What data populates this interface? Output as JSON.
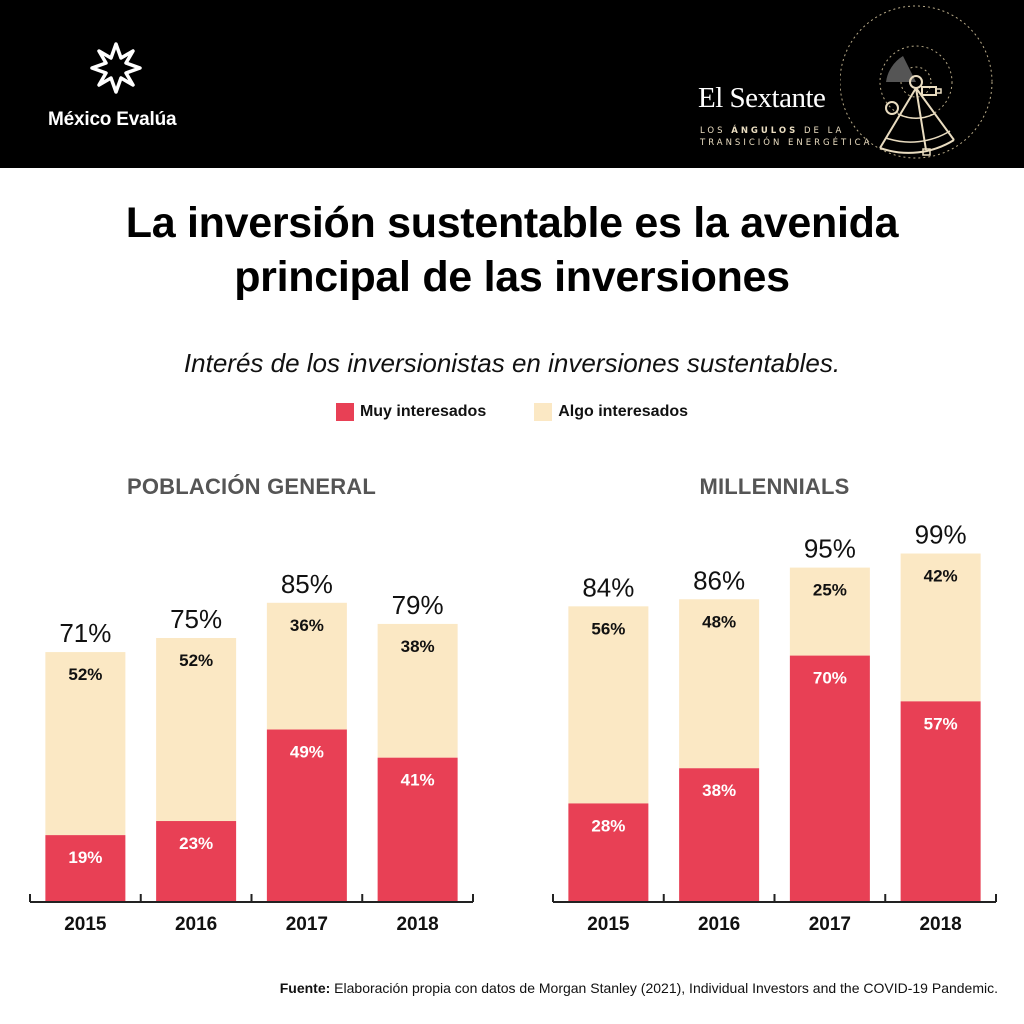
{
  "header": {
    "org_name": "México Evalúa",
    "brand_title": "El Sextante",
    "brand_subtitle_line1_pre": "LOS ",
    "brand_subtitle_line1_bold": "ÁNGULOS",
    "brand_subtitle_line1_post": " DE LA",
    "brand_subtitle_line2": "TRANSICIÓN ENERGÉTICA"
  },
  "title_line1": "La inversión sustentable es la avenida",
  "title_line2": "principal de las inversiones",
  "subtitle": "Interés de los inversionistas en inversiones sustentables.",
  "colors": {
    "muy": "#e84055",
    "algo": "#fbe8c4",
    "header_bg": "#000000",
    "panel_title": "#555555"
  },
  "source": {
    "label": "Fuente:",
    "text": " Elaboración propia con datos de Morgan Stanley (2021), Individual Investors and the COVID-19 Pandemic."
  },
  "chart_data": [
    {
      "type": "bar",
      "stacked": true,
      "title": "POBLACIÓN GENERAL",
      "categories": [
        "2015",
        "2016",
        "2017",
        "2018"
      ],
      "series": [
        {
          "name": "Muy interesados",
          "values": [
            19,
            23,
            49,
            41
          ]
        },
        {
          "name": "Algo interesados",
          "values": [
            52,
            52,
            36,
            38
          ]
        }
      ],
      "totals": [
        71,
        75,
        85,
        79
      ],
      "legend": "top-center",
      "ylim": [
        0,
        100
      ],
      "grid": false,
      "xlabel": "",
      "ylabel": ""
    },
    {
      "type": "bar",
      "stacked": true,
      "title": "MILLENNIALS",
      "categories": [
        "2015",
        "2016",
        "2017",
        "2018"
      ],
      "series": [
        {
          "name": "Muy interesados",
          "values": [
            28,
            38,
            70,
            57
          ]
        },
        {
          "name": "Algo interesados",
          "values": [
            56,
            48,
            25,
            42
          ]
        }
      ],
      "totals": [
        84,
        86,
        95,
        99
      ],
      "legend": "top-center",
      "ylim": [
        0,
        100
      ],
      "grid": false,
      "xlabel": "",
      "ylabel": ""
    }
  ]
}
